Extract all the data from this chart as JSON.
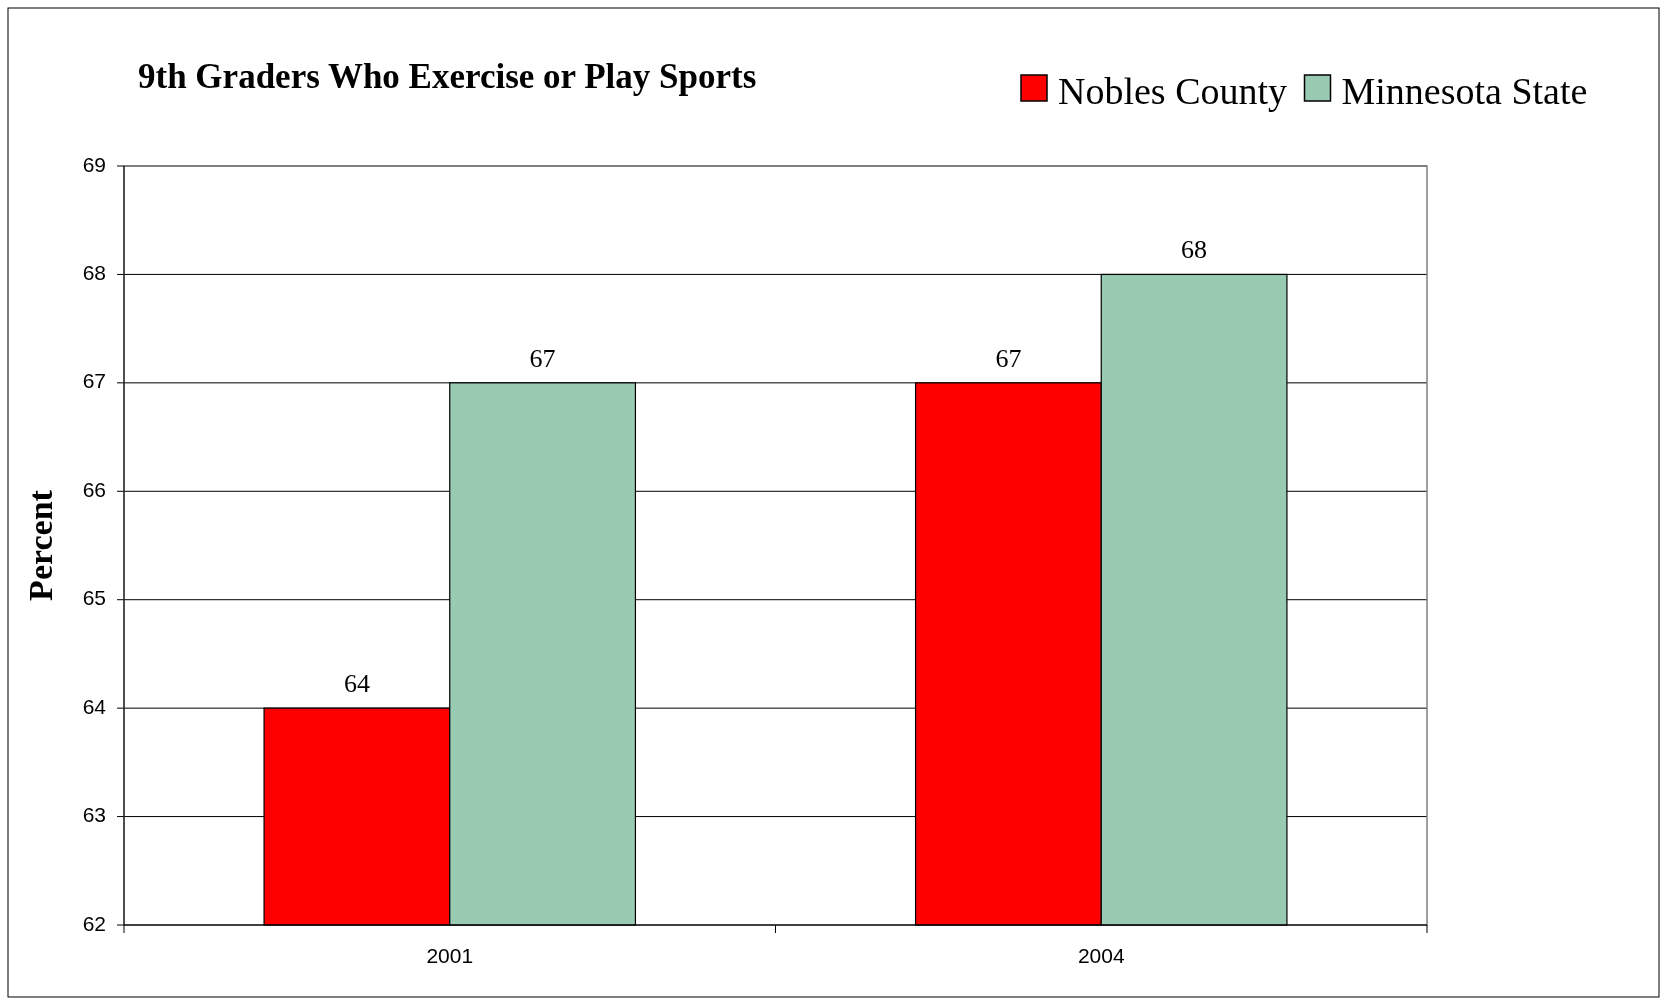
{
  "chart_data": {
    "type": "bar",
    "title": "9th Graders Who Exercise or Play Sports",
    "ylabel": "Percent",
    "categories": [
      "2001",
      "2004"
    ],
    "series": [
      {
        "name": "Nobles County",
        "color": "#ff0000",
        "values": [
          64,
          67
        ]
      },
      {
        "name": "Minnesota State",
        "color": "#99cbb2",
        "values": [
          67,
          68
        ]
      }
    ],
    "ylim": [
      62,
      69
    ],
    "yticks": [
      62,
      63,
      64,
      65,
      66,
      67,
      68,
      69
    ],
    "grid": "y",
    "legend": "top right",
    "data_labels": true
  }
}
